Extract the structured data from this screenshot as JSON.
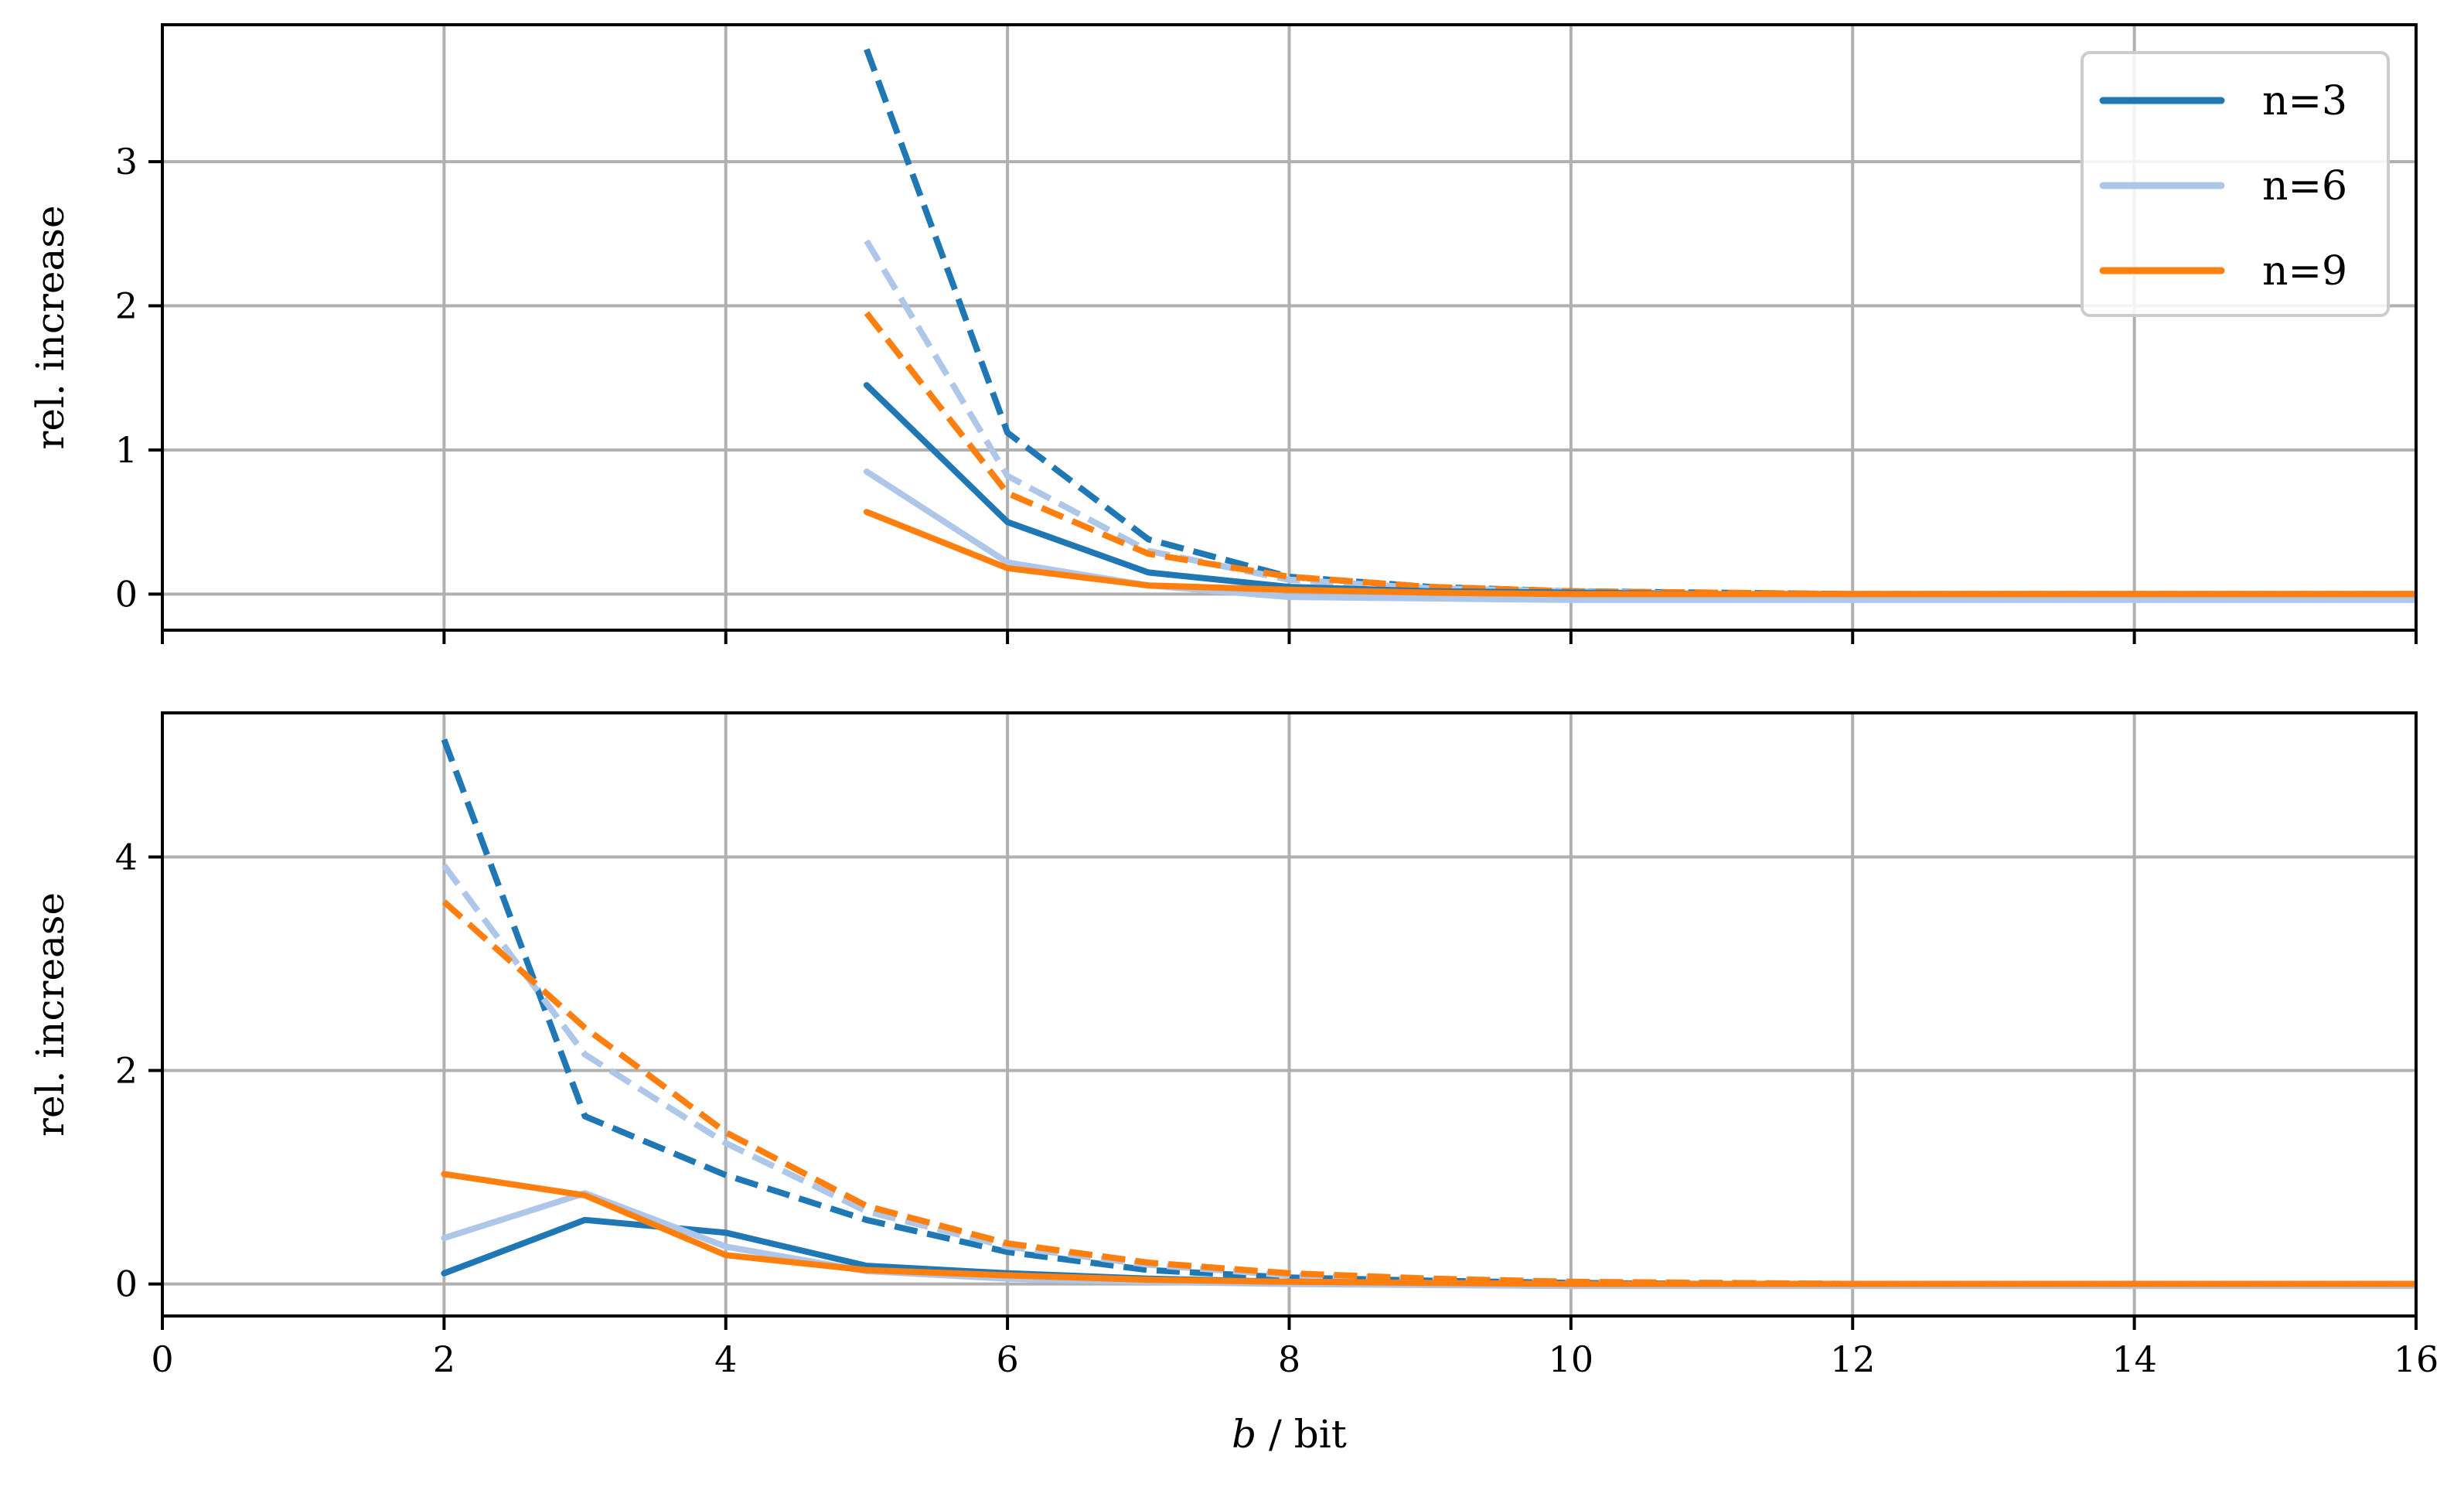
{
  "chart_data": [
    {
      "type": "line",
      "xlabel": "",
      "ylabel": "rel. increase",
      "xlim": [
        0,
        16
      ],
      "ylim": [
        -0.25,
        3.95
      ],
      "xticks": [
        0,
        2,
        4,
        6,
        8,
        10,
        12,
        14,
        16
      ],
      "yticks": [
        0,
        1,
        2,
        3
      ],
      "grid": true,
      "legend": {
        "placement": "top-right",
        "entries": [
          {
            "label": "n=3",
            "color": "#1f77b4"
          },
          {
            "label": "n=6",
            "color": "#aec7e8"
          },
          {
            "label": "n=9",
            "color": "#ff7f0e"
          }
        ]
      },
      "series": [
        {
          "name": "n=3",
          "style": "solid",
          "color": "#1f77b4",
          "x": [
            5,
            6,
            7,
            8,
            9,
            10,
            11,
            12,
            13,
            14,
            15,
            16
          ],
          "y": [
            1.45,
            0.5,
            0.15,
            0.05,
            0.02,
            0.01,
            0.0,
            0.0,
            0.0,
            0.0,
            0.0,
            0.0
          ]
        },
        {
          "name": "n=3",
          "style": "dashed",
          "color": "#1f77b4",
          "x": [
            5,
            6,
            7,
            8,
            9,
            10,
            11,
            12,
            13,
            14,
            15,
            16
          ],
          "y": [
            3.78,
            1.12,
            0.38,
            0.12,
            0.05,
            0.02,
            0.01,
            0.0,
            0.0,
            0.0,
            0.0,
            0.0
          ]
        },
        {
          "name": "n=6",
          "style": "solid",
          "color": "#aec7e8",
          "x": [
            5,
            6,
            7,
            8,
            9,
            10,
            11,
            12,
            13,
            14,
            15,
            16
          ],
          "y": [
            0.85,
            0.22,
            0.06,
            -0.02,
            -0.03,
            -0.04,
            -0.04,
            -0.04,
            -0.04,
            -0.04,
            -0.04,
            -0.04
          ]
        },
        {
          "name": "n=6",
          "style": "dashed",
          "color": "#aec7e8",
          "x": [
            5,
            6,
            7,
            8,
            9,
            10,
            11,
            12,
            13,
            14,
            15,
            16
          ],
          "y": [
            2.45,
            0.82,
            0.3,
            0.1,
            0.04,
            0.02,
            0.0,
            0.0,
            0.0,
            0.0,
            0.0,
            0.0
          ]
        },
        {
          "name": "n=9",
          "style": "solid",
          "color": "#ff7f0e",
          "x": [
            5,
            6,
            7,
            8,
            9,
            10,
            11,
            12,
            13,
            14,
            15,
            16
          ],
          "y": [
            0.57,
            0.18,
            0.06,
            0.03,
            0.01,
            0.0,
            0.0,
            0.0,
            0.0,
            0.0,
            0.0,
            0.0
          ]
        },
        {
          "name": "n=9",
          "style": "dashed",
          "color": "#ff7f0e",
          "x": [
            5,
            6,
            7,
            8,
            9,
            10,
            11,
            12,
            13,
            14,
            15,
            16
          ],
          "y": [
            1.95,
            0.7,
            0.28,
            0.12,
            0.05,
            0.02,
            0.01,
            0.0,
            0.0,
            0.0,
            0.0,
            0.0
          ]
        }
      ]
    },
    {
      "type": "line",
      "xlabel": "b / bit",
      "ylabel": "rel. increase",
      "xlim": [
        0,
        16
      ],
      "ylim": [
        -0.3,
        5.35
      ],
      "xticks": [
        0,
        2,
        4,
        6,
        8,
        10,
        12,
        14,
        16
      ],
      "yticks": [
        0,
        2,
        4
      ],
      "grid": true,
      "series": [
        {
          "name": "n=3",
          "style": "solid",
          "color": "#1f77b4",
          "x": [
            2,
            3,
            4,
            5,
            6,
            7,
            8,
            9,
            10,
            11,
            12,
            13,
            14,
            15,
            16
          ],
          "y": [
            0.1,
            0.6,
            0.48,
            0.17,
            0.1,
            0.05,
            0.02,
            0.01,
            0.0,
            0.0,
            0.0,
            0.0,
            0.0,
            0.0,
            0.0
          ]
        },
        {
          "name": "n=3",
          "style": "dashed",
          "color": "#1f77b4",
          "x": [
            2,
            3,
            4,
            5,
            6,
            7,
            8,
            9,
            10,
            11,
            12,
            13,
            14,
            15,
            16
          ],
          "y": [
            5.1,
            1.57,
            1.02,
            0.6,
            0.3,
            0.13,
            0.06,
            0.03,
            0.01,
            0.0,
            0.0,
            0.0,
            0.0,
            0.0,
            0.0
          ]
        },
        {
          "name": "n=6",
          "style": "solid",
          "color": "#aec7e8",
          "x": [
            2,
            3,
            4,
            5,
            6,
            7,
            8,
            9,
            10,
            11,
            12,
            13,
            14,
            15,
            16
          ],
          "y": [
            0.43,
            0.85,
            0.35,
            0.12,
            0.05,
            0.02,
            0.0,
            -0.01,
            -0.02,
            -0.02,
            -0.02,
            -0.02,
            -0.02,
            -0.02,
            -0.02
          ]
        },
        {
          "name": "n=6",
          "style": "dashed",
          "color": "#aec7e8",
          "x": [
            2,
            3,
            4,
            5,
            6,
            7,
            8,
            9,
            10,
            11,
            12,
            13,
            14,
            15,
            16
          ],
          "y": [
            3.92,
            2.15,
            1.32,
            0.68,
            0.35,
            0.18,
            0.08,
            0.04,
            0.02,
            0.01,
            0.0,
            0.0,
            0.0,
            0.0,
            0.0
          ]
        },
        {
          "name": "n=9",
          "style": "solid",
          "color": "#ff7f0e",
          "x": [
            2,
            3,
            4,
            5,
            6,
            7,
            8,
            9,
            10,
            11,
            12,
            13,
            14,
            15,
            16
          ],
          "y": [
            1.03,
            0.83,
            0.27,
            0.13,
            0.08,
            0.04,
            0.02,
            0.01,
            0.0,
            0.0,
            0.0,
            0.0,
            0.0,
            0.0,
            0.0
          ]
        },
        {
          "name": "n=9",
          "style": "dashed",
          "color": "#ff7f0e",
          "x": [
            2,
            3,
            4,
            5,
            6,
            7,
            8,
            9,
            10,
            11,
            12,
            13,
            14,
            15,
            16
          ],
          "y": [
            3.58,
            2.4,
            1.42,
            0.73,
            0.38,
            0.2,
            0.1,
            0.05,
            0.02,
            0.01,
            0.0,
            0.0,
            0.0,
            0.0,
            0.0
          ]
        }
      ]
    }
  ]
}
